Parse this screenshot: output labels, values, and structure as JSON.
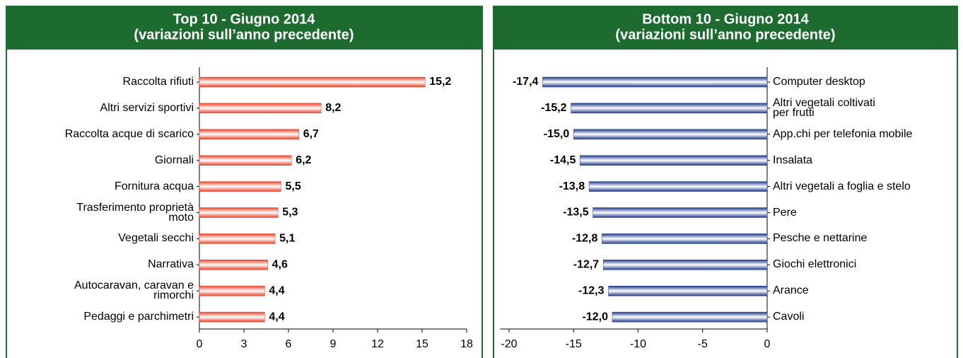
{
  "chart_data": [
    {
      "type": "bar",
      "orientation": "horizontal",
      "title": "Top 10 - Giugno 2014",
      "subtitle": "(variazioni sull’anno precedente)",
      "categories": [
        "Raccolta rifiuti",
        "Altri servizi sportivi",
        "Raccolta acque di scarico",
        "Giornali",
        "Fornitura acqua",
        "Trasferimento proprietà\nmoto",
        "Vegetali secchi",
        "Narrativa",
        "Autocaravan, caravan e\nrimorchi",
        "Pedaggi e parchimetri"
      ],
      "values": [
        15.2,
        8.2,
        6.7,
        6.2,
        5.5,
        5.3,
        5.1,
        4.6,
        4.4,
        4.4
      ],
      "value_labels": [
        "15,2",
        "8,2",
        "6,7",
        "6,2",
        "5,5",
        "5,3",
        "5,1",
        "4,6",
        "4,4",
        "4,4"
      ],
      "color": "#e8432a",
      "xlim": [
        0,
        18
      ],
      "xticks": [
        0,
        3,
        6,
        9,
        12,
        15,
        18
      ]
    },
    {
      "type": "bar",
      "orientation": "horizontal",
      "title": "Bottom 10 - Giugno 2014",
      "subtitle": "(variazioni sull’anno precedente)",
      "categories": [
        "Computer desktop",
        "Altri vegetali coltivati\nper frutti",
        "App.chi per telefonia mobile",
        "Insalata",
        "Altri vegetali a foglia e stelo",
        "Pere",
        "Pesche e nettarine",
        "Giochi elettronici",
        "Arance",
        "Cavoli"
      ],
      "values": [
        -17.4,
        -15.2,
        -15.0,
        -14.5,
        -13.8,
        -13.5,
        -12.8,
        -12.7,
        -12.3,
        -12.0
      ],
      "value_labels": [
        "-17,4",
        "-15,2",
        "-15,0",
        "-14,5",
        "-13,8",
        "-13,5",
        "-12,8",
        "-12,7",
        "-12,3",
        "-12,0"
      ],
      "color": "#1f3a8a",
      "xlim": [
        -20.7,
        0
      ],
      "xticks": [
        -20,
        -15,
        -10,
        -5,
        0
      ]
    }
  ]
}
